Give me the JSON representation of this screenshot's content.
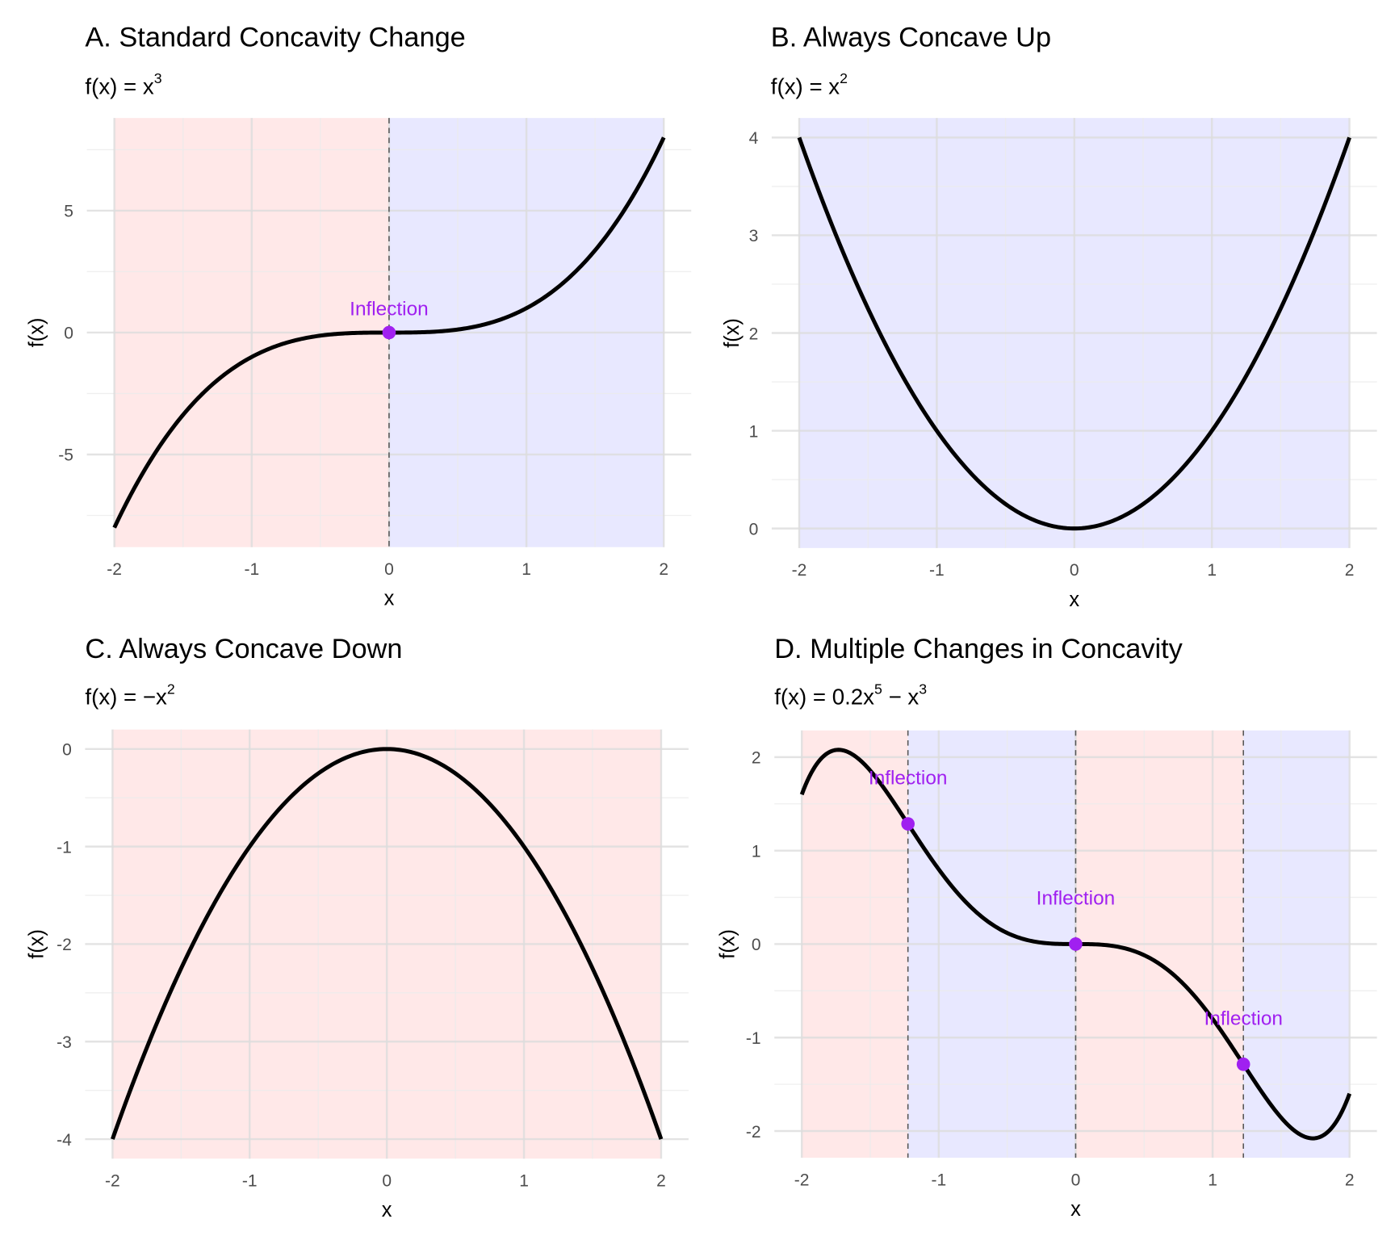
{
  "chart_data": [
    {
      "type": "line",
      "title": "A. Standard Concavity Change",
      "subtitle": [
        {
          "t": "f(x) = x"
        },
        {
          "sup": "3"
        }
      ],
      "xlabel": "x",
      "ylabel": "f(x)",
      "coefficients": [
        0,
        0,
        0,
        1
      ],
      "x_range": [
        -2,
        2
      ],
      "xlim": [
        -2.2,
        2.2
      ],
      "ylim": [
        -8.8,
        8.8
      ],
      "xticks": [
        -2,
        -1,
        0,
        1,
        2
      ],
      "xtick_labels": [
        "-2",
        "-1",
        "0",
        "1",
        "2"
      ],
      "yticks": [
        -5,
        0,
        5
      ],
      "ytick_labels": [
        "-5",
        "0",
        "5"
      ],
      "regions": [
        {
          "from": -2,
          "to": 0,
          "concavity": "down"
        },
        {
          "from": 0,
          "to": 2,
          "concavity": "up"
        }
      ],
      "inflections": [
        {
          "x": 0,
          "y": 0,
          "label": "Inflection",
          "label_dy": 1.0
        }
      ]
    },
    {
      "type": "line",
      "title": "B. Always Concave Up",
      "subtitle": [
        {
          "t": "f(x) = x"
        },
        {
          "sup": "2"
        }
      ],
      "xlabel": "x",
      "ylabel": "f(x)",
      "coefficients": [
        0,
        0,
        1
      ],
      "x_range": [
        -2,
        2
      ],
      "xlim": [
        -2.2,
        2.2
      ],
      "ylim": [
        -0.2,
        4.2
      ],
      "xticks": [
        -2,
        -1,
        0,
        1,
        2
      ],
      "xtick_labels": [
        "-2",
        "-1",
        "0",
        "1",
        "2"
      ],
      "yticks": [
        0,
        1,
        2,
        3,
        4
      ],
      "ytick_labels": [
        "0",
        "1",
        "2",
        "3",
        "4"
      ],
      "regions": [
        {
          "from": -2,
          "to": 2,
          "concavity": "up"
        }
      ],
      "inflections": []
    },
    {
      "type": "line",
      "title": "C. Always Concave Down",
      "subtitle": [
        {
          "t": "f(x) = −x"
        },
        {
          "sup": "2"
        }
      ],
      "xlabel": "x",
      "ylabel": "f(x)",
      "coefficients": [
        0,
        0,
        -1
      ],
      "x_range": [
        -2,
        2
      ],
      "xlim": [
        -2.2,
        2.2
      ],
      "ylim": [
        -4.2,
        0.2
      ],
      "xticks": [
        -2,
        -1,
        0,
        1,
        2
      ],
      "xtick_labels": [
        "-2",
        "-1",
        "0",
        "1",
        "2"
      ],
      "yticks": [
        -4,
        -3,
        -2,
        -1,
        0
      ],
      "ytick_labels": [
        "-4",
        "-3",
        "-2",
        "-1",
        "0"
      ],
      "regions": [
        {
          "from": -2,
          "to": 2,
          "concavity": "down"
        }
      ],
      "inflections": []
    },
    {
      "type": "line",
      "title": "D. Multiple Changes in Concavity",
      "subtitle": [
        {
          "t": "f(x) = 0.2x"
        },
        {
          "sup": "5"
        },
        {
          "t": " − x"
        },
        {
          "sup": "3"
        }
      ],
      "xlabel": "x",
      "ylabel": "f(x)",
      "coefficients": [
        0,
        0,
        0,
        -1,
        0,
        0.2
      ],
      "x_range": [
        -2,
        2
      ],
      "xlim": [
        -2.2,
        2.2
      ],
      "ylim": [
        -2.286,
        2.286
      ],
      "xticks": [
        -2,
        -1,
        0,
        1,
        2
      ],
      "xtick_labels": [
        "-2",
        "-1",
        "0",
        "1",
        "2"
      ],
      "yticks": [
        -2,
        -1,
        0,
        1,
        2
      ],
      "ytick_labels": [
        "-2",
        "-1",
        "0",
        "1",
        "2"
      ],
      "regions": [
        {
          "from": -2,
          "to": -1.2247,
          "concavity": "down"
        },
        {
          "from": -1.2247,
          "to": 0,
          "concavity": "up"
        },
        {
          "from": 0,
          "to": 1.2247,
          "concavity": "down"
        },
        {
          "from": 1.2247,
          "to": 2,
          "concavity": "up"
        }
      ],
      "inflections": [
        {
          "x": -1.2247,
          "y": 1.286,
          "label": "Inflection",
          "label_dy": 0.5
        },
        {
          "x": 0,
          "y": 0,
          "label": "Inflection",
          "label_dy": 0.5
        },
        {
          "x": 1.2247,
          "y": -1.286,
          "label": "Inflection",
          "label_dy": 0.5
        }
      ]
    }
  ],
  "colors": {
    "concave_down": "#ff0000",
    "concave_up": "#0000ff",
    "curve": "#000000",
    "inflection": "#a020f0",
    "grid": "#ebebeb",
    "vline": "#555555"
  }
}
